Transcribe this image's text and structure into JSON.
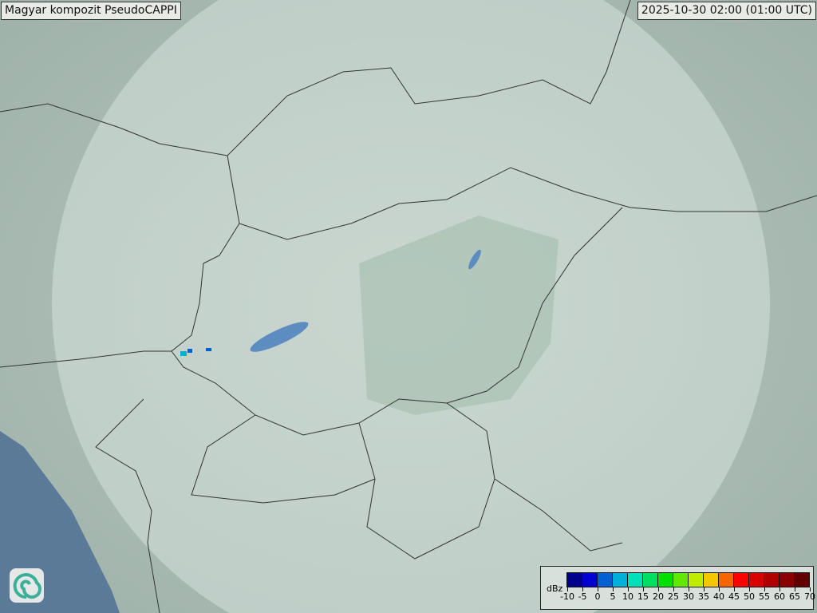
{
  "title": "Magyar kompozit  PseudoCAPPI",
  "timestamp": "2025-10-30 02:00 (01:00 UTC)",
  "logo": "swirl-logo-icon",
  "legend": {
    "unit": "dBz",
    "ticks": [
      "-10",
      "-5",
      "0",
      "5",
      "10",
      "15",
      "20",
      "25",
      "30",
      "35",
      "40",
      "45",
      "50",
      "55",
      "60",
      "65",
      "70"
    ],
    "colors": [
      "#00008c",
      "#0000d0",
      "#0060d4",
      "#00b0d8",
      "#00e0b8",
      "#00e060",
      "#00e000",
      "#60e800",
      "#c0ec00",
      "#f4c800",
      "#f86400",
      "#fc0000",
      "#d80000",
      "#b00000",
      "#880000",
      "#600000"
    ]
  },
  "map": {
    "base_color": "#a9bdb4",
    "sea_color": "#5a7a98",
    "radar_coverage_color": "#dfece6",
    "echo_colors": [
      "#00b0d8",
      "#0060d4"
    ]
  }
}
